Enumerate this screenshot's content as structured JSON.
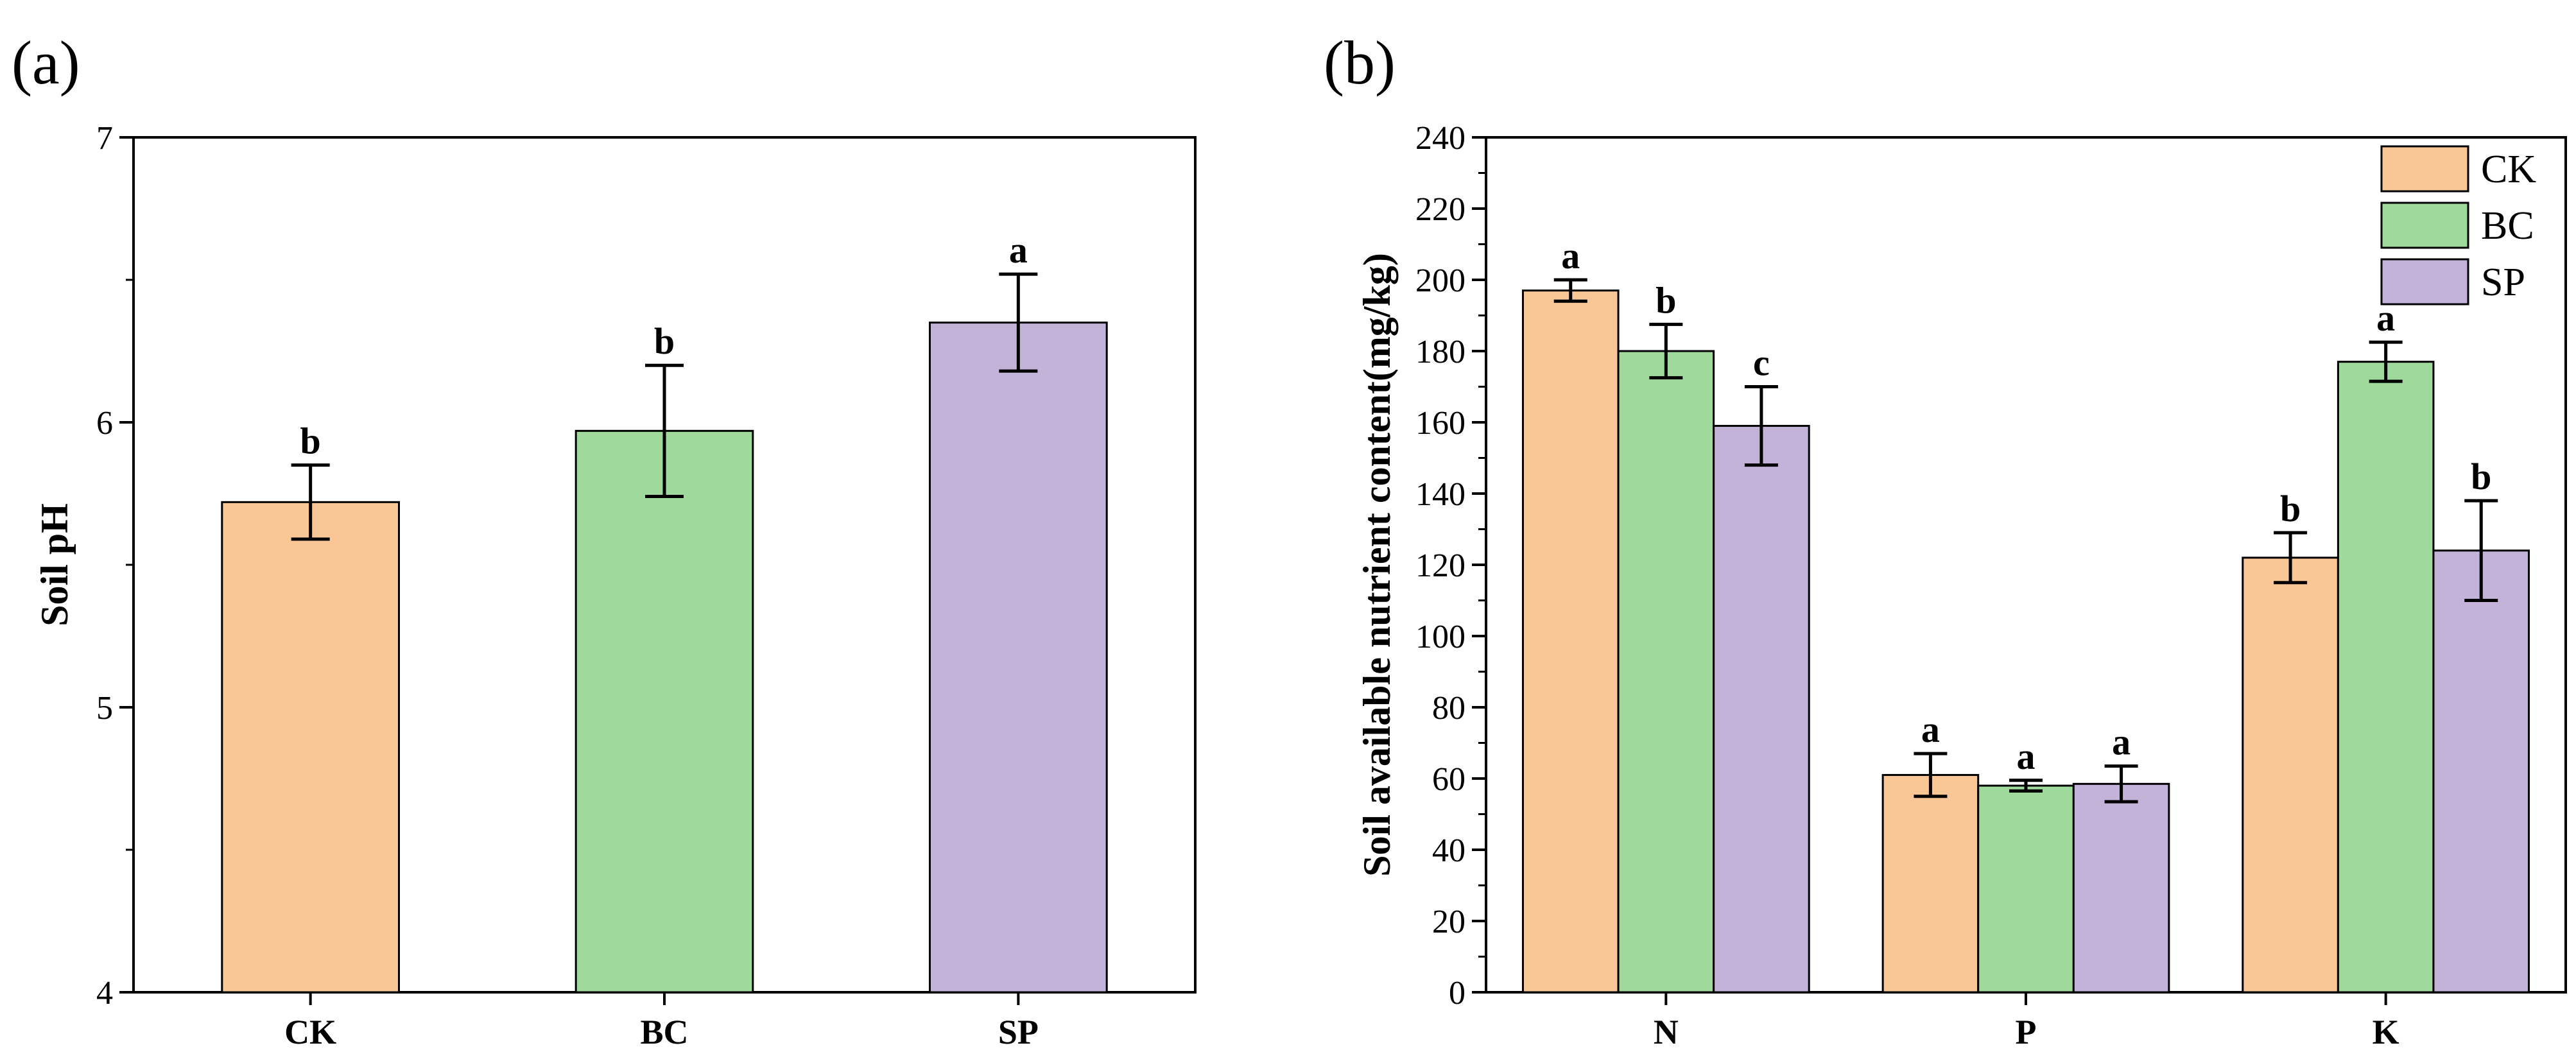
{
  "colors": {
    "CK": "#f9c795",
    "BC": "#9fd99c",
    "SP": "#c3b3d8",
    "stroke": "#000000"
  },
  "chart_data": [
    {
      "type": "bar",
      "panel_label": "(a)",
      "title": "",
      "xlabel": "",
      "ylabel": "Soil pH",
      "ylim": [
        4,
        7
      ],
      "yticks": [
        4,
        5,
        6,
        7
      ],
      "grid": false,
      "categories": [
        "CK",
        "BC",
        "SP"
      ],
      "values": [
        5.72,
        5.97,
        6.35
      ],
      "errors": [
        0.13,
        0.23,
        0.17
      ],
      "significance": [
        "b",
        "b",
        "a"
      ]
    },
    {
      "type": "bar",
      "panel_label": "(b)",
      "title": "",
      "xlabel": "",
      "ylabel": "Soil available nutrient content(mg/kg)",
      "ylim": [
        0,
        240
      ],
      "yticks": [
        0,
        20,
        40,
        60,
        80,
        100,
        120,
        140,
        160,
        180,
        200,
        220,
        240
      ],
      "grid": false,
      "legend_position": "top-right",
      "categories": [
        "N",
        "P",
        "K"
      ],
      "series": [
        {
          "name": "CK",
          "values": [
            197,
            61,
            122
          ],
          "errors": [
            3,
            6,
            7
          ],
          "significance": [
            "a",
            "a",
            "b"
          ]
        },
        {
          "name": "BC",
          "values": [
            180,
            58,
            177
          ],
          "errors": [
            7.5,
            1.5,
            5.5
          ],
          "significance": [
            "b",
            "a",
            "a"
          ]
        },
        {
          "name": "SP",
          "values": [
            159,
            58.5,
            124
          ],
          "errors": [
            11,
            5,
            14
          ],
          "significance": [
            "c",
            "a",
            "b"
          ]
        }
      ]
    }
  ]
}
